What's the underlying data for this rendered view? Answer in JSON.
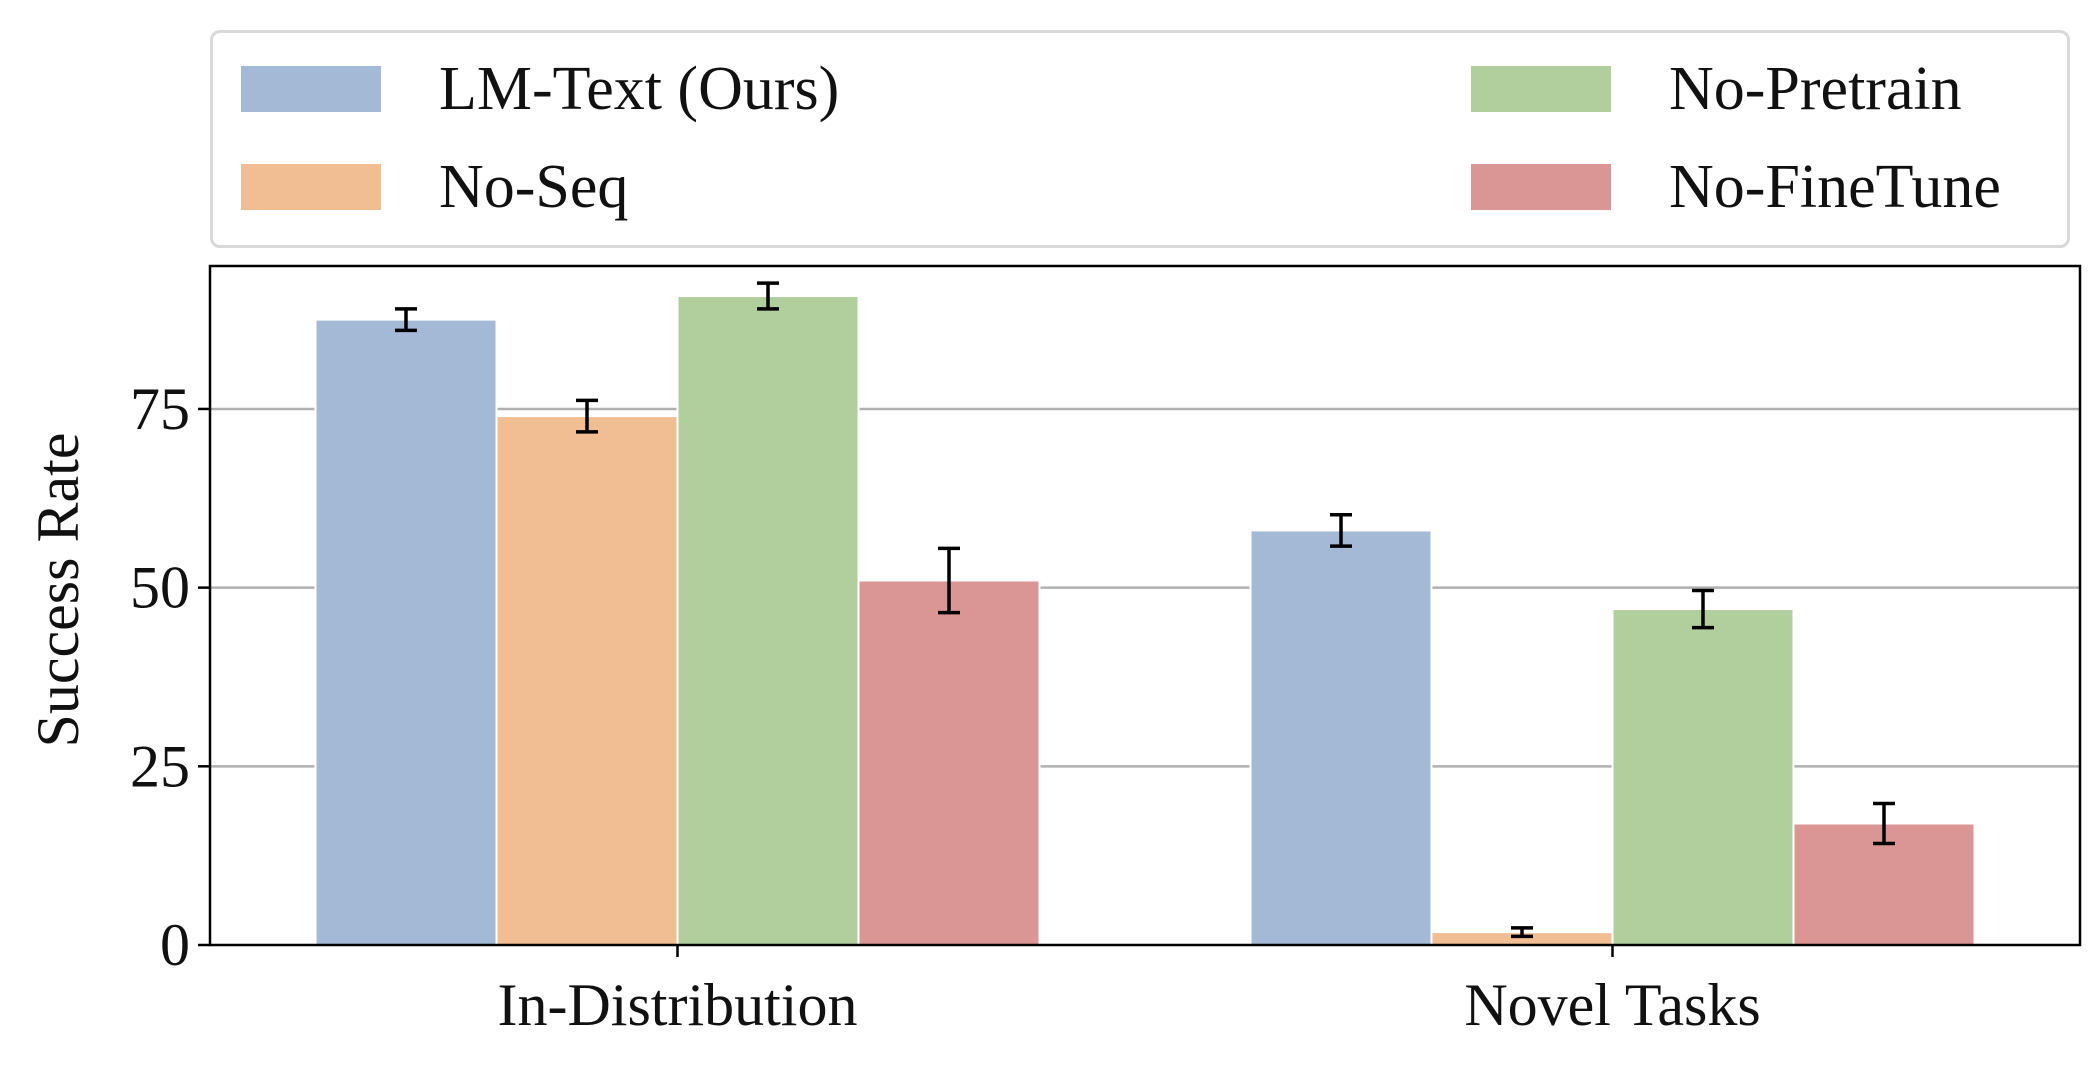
{
  "chart_data": {
    "type": "bar",
    "title": "",
    "xlabel": "",
    "ylabel": "Success Rate",
    "ylim": [
      0,
      95
    ],
    "yticks": [
      0,
      25,
      50,
      75
    ],
    "grid": "horizontal",
    "legend_placement": "top",
    "categories": [
      "In-Distribution",
      "Novel Tasks"
    ],
    "series": [
      {
        "name": "LM-Text (Ours)",
        "color": "#a4b9d6",
        "values": [
          87.5,
          58.0
        ],
        "errors": [
          1.5,
          2.2
        ]
      },
      {
        "name": "No-Seq",
        "color": "#f1bd92",
        "values": [
          74.0,
          1.8
        ],
        "errors": [
          2.2,
          0.6
        ]
      },
      {
        "name": "No-Pretrain",
        "color": "#b0cf9c",
        "values": [
          90.8,
          47.0
        ],
        "errors": [
          1.8,
          2.6
        ]
      },
      {
        "name": "No-FineTune",
        "color": "#da9595",
        "values": [
          51.0,
          17.0
        ],
        "errors": [
          4.5,
          2.8
        ]
      }
    ]
  }
}
